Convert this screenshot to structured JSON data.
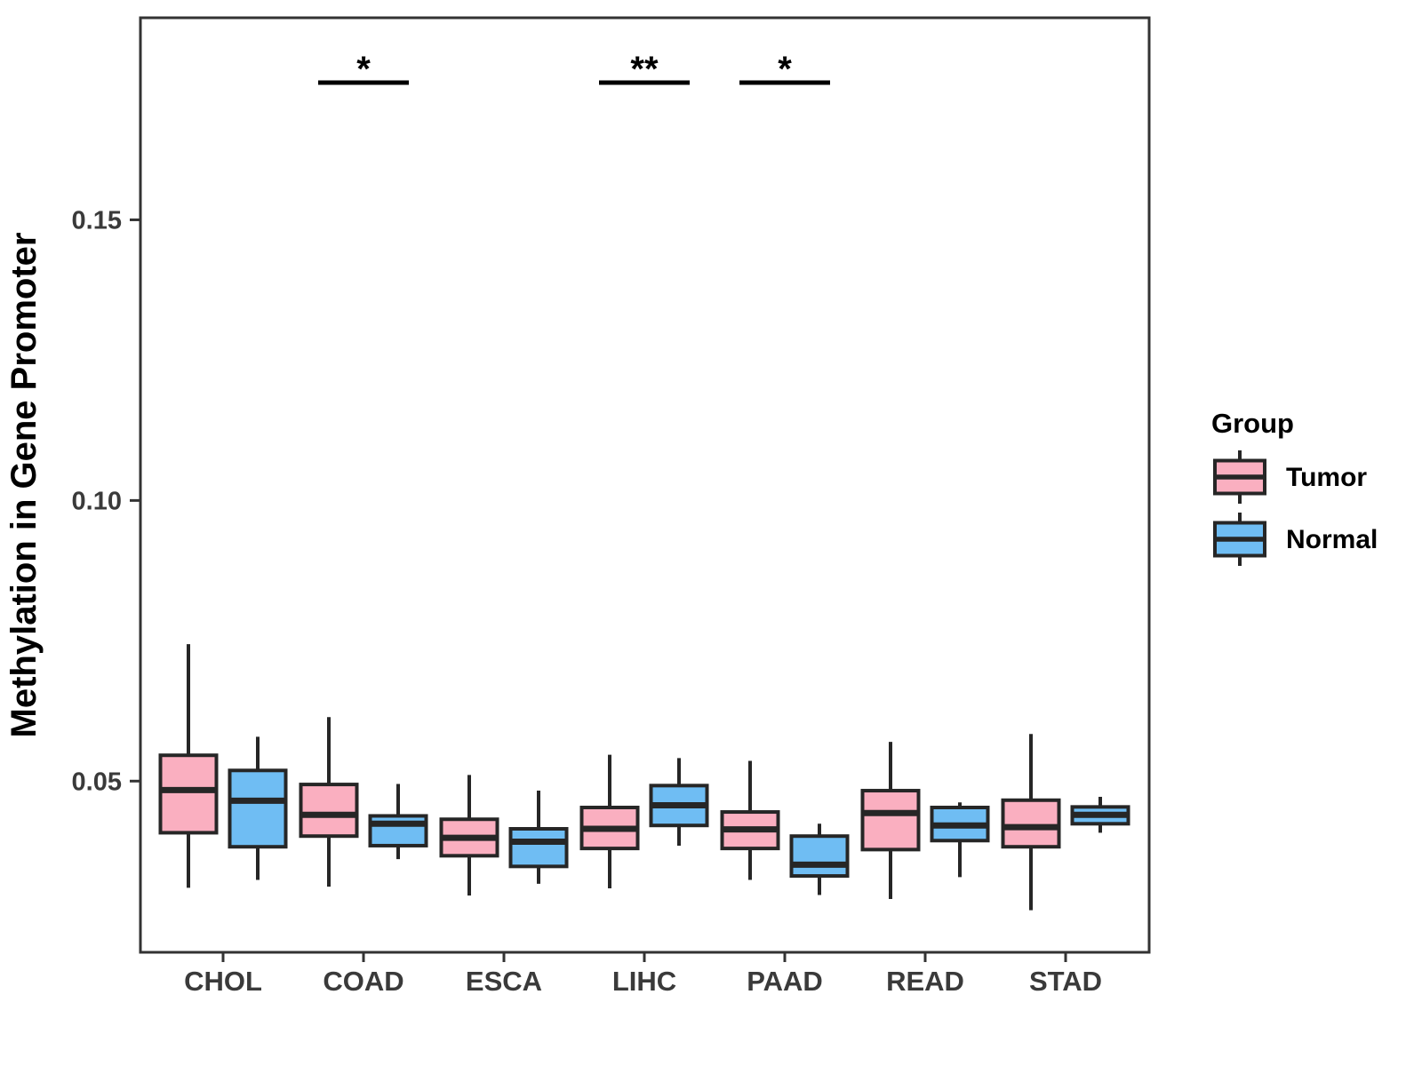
{
  "chart_data": {
    "type": "boxplot",
    "title": "",
    "xlabel": "",
    "ylabel": "Methylation in Gene Promoter",
    "categories": [
      "CHOL",
      "COAD",
      "ESCA",
      "LIHC",
      "PAAD",
      "READ",
      "STAD"
    ],
    "ylim": [
      0.0195,
      0.186
    ],
    "grid": "off",
    "y_ticks": [
      {
        "value": 0.05,
        "label": "0.05"
      },
      {
        "value": 0.1,
        "label": "0.10"
      },
      {
        "value": 0.15,
        "label": "0.15"
      }
    ],
    "legend": {
      "title": "Group",
      "position": "right",
      "items": [
        {
          "label": "Tumor",
          "color": "#FAAFC0"
        },
        {
          "label": "Normal",
          "color": "#6FBDF3"
        }
      ]
    },
    "series": [
      {
        "name": "Tumor",
        "color": "#FAAFC0",
        "boxes": [
          {
            "category": "CHOL",
            "lower": 0.031,
            "q1": 0.0408,
            "median": 0.0484,
            "q3": 0.0546,
            "upper": 0.0744
          },
          {
            "category": "COAD",
            "lower": 0.0312,
            "q1": 0.0402,
            "median": 0.044,
            "q3": 0.0494,
            "upper": 0.0614
          },
          {
            "category": "ESCA",
            "lower": 0.0296,
            "q1": 0.0367,
            "median": 0.0399,
            "q3": 0.0432,
            "upper": 0.0511
          },
          {
            "category": "LIHC",
            "lower": 0.0309,
            "q1": 0.038,
            "median": 0.0415,
            "q3": 0.0453,
            "upper": 0.0547
          },
          {
            "category": "PAAD",
            "lower": 0.0324,
            "q1": 0.038,
            "median": 0.0414,
            "q3": 0.0445,
            "upper": 0.0536
          },
          {
            "category": "READ",
            "lower": 0.029,
            "q1": 0.0378,
            "median": 0.0443,
            "q3": 0.0483,
            "upper": 0.057
          },
          {
            "category": "STAD",
            "lower": 0.027,
            "q1": 0.0383,
            "median": 0.0418,
            "q3": 0.0466,
            "upper": 0.0584
          }
        ]
      },
      {
        "name": "Normal",
        "color": "#6FBDF3",
        "boxes": [
          {
            "category": "CHOL",
            "lower": 0.0324,
            "q1": 0.0383,
            "median": 0.0465,
            "q3": 0.0519,
            "upper": 0.0579
          },
          {
            "category": "COAD",
            "lower": 0.0361,
            "q1": 0.0385,
            "median": 0.0424,
            "q3": 0.0438,
            "upper": 0.0495
          },
          {
            "category": "ESCA",
            "lower": 0.0317,
            "q1": 0.0348,
            "median": 0.0392,
            "q3": 0.0415,
            "upper": 0.0483
          },
          {
            "category": "LIHC",
            "lower": 0.0385,
            "q1": 0.0421,
            "median": 0.0457,
            "q3": 0.0492,
            "upper": 0.0541
          },
          {
            "category": "PAAD",
            "lower": 0.0297,
            "q1": 0.0331,
            "median": 0.0351,
            "q3": 0.0402,
            "upper": 0.0424
          },
          {
            "category": "READ",
            "lower": 0.0329,
            "q1": 0.0394,
            "median": 0.0421,
            "q3": 0.0453,
            "upper": 0.0462
          },
          {
            "category": "STAD",
            "lower": 0.0408,
            "q1": 0.0424,
            "median": 0.044,
            "q3": 0.0454,
            "upper": 0.0472
          }
        ]
      }
    ],
    "significance": [
      {
        "category": "COAD",
        "label": "*"
      },
      {
        "category": "LIHC",
        "label": "**"
      },
      {
        "category": "PAAD",
        "label": "*"
      }
    ]
  }
}
